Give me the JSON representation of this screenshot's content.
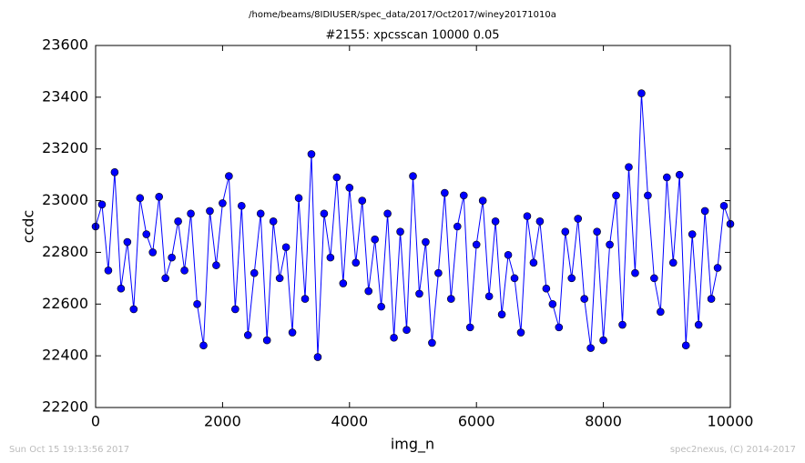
{
  "chart_data": {
    "type": "line",
    "suptitle": "/home/beams/8IDIUSER/spec_data/2017/Oct2017/winey20171010a",
    "title": "#2155: xpcsscan 10000 0.05",
    "xlabel": "img_n",
    "ylabel": "ccdc",
    "footer_left": "Sun Oct 15 19:13:56 2017",
    "footer_right": "spec2nexus, (C) 2014-2017",
    "xlim": [
      0,
      10000
    ],
    "xticks": [
      0,
      2000,
      4000,
      6000,
      8000,
      10000
    ],
    "ylim": [
      22200,
      23600
    ],
    "yticks": [
      22200,
      22400,
      22600,
      22800,
      23000,
      23200,
      23400,
      23600
    ],
    "x": [
      0,
      100,
      200,
      300,
      400,
      500,
      600,
      700,
      800,
      900,
      1000,
      1100,
      1200,
      1300,
      1400,
      1500,
      1600,
      1700,
      1800,
      1900,
      2000,
      2100,
      2200,
      2300,
      2400,
      2500,
      2600,
      2700,
      2800,
      2900,
      3000,
      3100,
      3200,
      3300,
      3400,
      3500,
      3600,
      3700,
      3800,
      3900,
      4000,
      4100,
      4200,
      4300,
      4400,
      4500,
      4600,
      4700,
      4800,
      4900,
      5000,
      5100,
      5200,
      5300,
      5400,
      5500,
      5600,
      5700,
      5800,
      5900,
      6000,
      6100,
      6200,
      6300,
      6400,
      6500,
      6600,
      6700,
      6800,
      6900,
      7000,
      7100,
      7200,
      7300,
      7400,
      7500,
      7600,
      7700,
      7800,
      7900,
      8000,
      8100,
      8200,
      8300,
      8400,
      8500,
      8600,
      8700,
      8800,
      8900,
      9000,
      9100,
      9200,
      9300,
      9400,
      9500,
      9600,
      9700,
      9800,
      9900,
      10000
    ],
    "series": [
      {
        "color": "#0000ff",
        "values": [
          22900,
          22985,
          22730,
          23110,
          22660,
          22840,
          22580,
          23010,
          22870,
          22800,
          23015,
          22700,
          22780,
          22920,
          22730,
          22950,
          22600,
          22440,
          22960,
          22750,
          22990,
          23095,
          22580,
          22980,
          22480,
          22720,
          22950,
          22460,
          22920,
          22700,
          22820,
          22490,
          23010,
          22620,
          23180,
          22395,
          22950,
          22780,
          23090,
          22680,
          23050,
          22760,
          23000,
          22650,
          22850,
          22590,
          22950,
          22470,
          22880,
          22500,
          23095,
          22640,
          22840,
          22450,
          22720,
          23030,
          22620,
          22900,
          23020,
          22510,
          22830,
          23000,
          22630,
          22920,
          22560,
          22790,
          22700,
          22490,
          22940,
          22760,
          22920,
          22660,
          22600,
          22510,
          22880,
          22700,
          22930,
          22620,
          22430,
          22880,
          22460,
          22830,
          23020,
          22520,
          23130,
          22720,
          23415,
          23020,
          22700,
          22570,
          23090,
          22760,
          23100,
          22440,
          22870,
          22520,
          22960,
          22620,
          22740,
          22980,
          22910
        ]
      }
    ]
  }
}
